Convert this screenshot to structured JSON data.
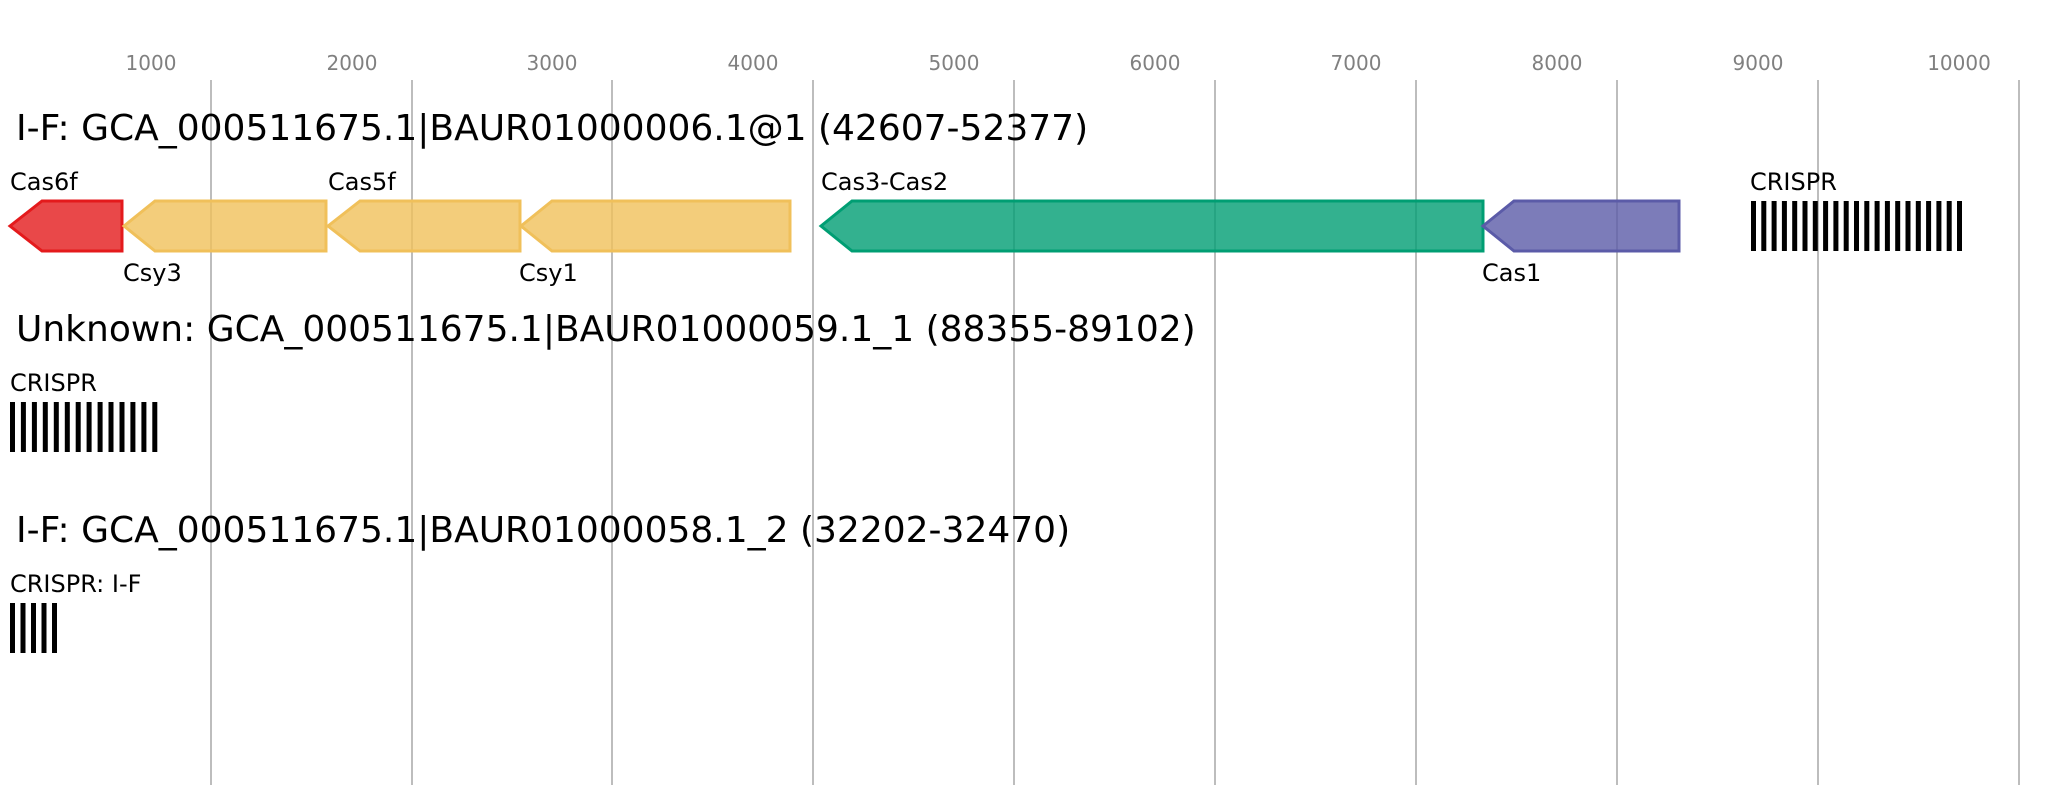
{
  "axis": {
    "ticks": [
      "1000",
      "2000",
      "3000",
      "4000",
      "5000",
      "6000",
      "7000",
      "8000",
      "9000",
      "10000"
    ]
  },
  "tracks": [
    {
      "title": "I-F: GCA_000511675.1|BAUR01000006.1@1 (42607-52377)",
      "genes": [
        {
          "label": "Cas6f",
          "color": "#e41a1c"
        },
        {
          "label": "Csy3",
          "color": "#f0c05a"
        },
        {
          "label": "Cas5f",
          "color": "#f0c05a"
        },
        {
          "label": "Csy1",
          "color": "#f0c05a"
        },
        {
          "label": "Cas3-Cas2",
          "color": "#009e73"
        },
        {
          "label": "Cas1",
          "color": "#5b5ba8"
        }
      ],
      "crispr": {
        "label": "CRISPR",
        "repeats": 21
      }
    },
    {
      "title": "Unknown: GCA_000511675.1|BAUR01000059.1_1 (88355-89102)",
      "genes": [],
      "crispr": {
        "label": "CRISPR",
        "repeats": 14
      }
    },
    {
      "title": "I-F: GCA_000511675.1|BAUR01000058.1_2 (32202-32470)",
      "genes": [],
      "crispr": {
        "label": "CRISPR: I-F",
        "repeats": 5
      }
    }
  ]
}
